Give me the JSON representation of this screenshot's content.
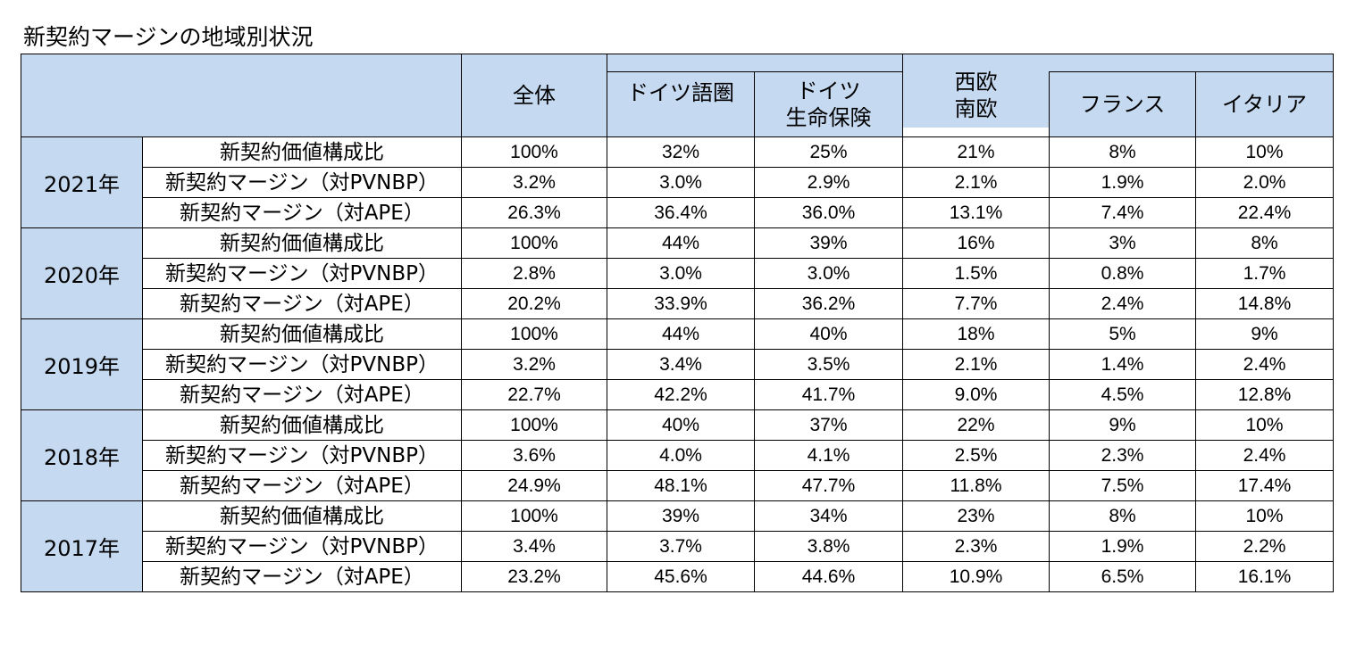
{
  "title": "新契約マージンの地域別状況",
  "headers": {
    "total": "全体",
    "dach": "ドイツ語圏",
    "germany_life_line1": "ドイツ",
    "germany_life_line2": "生命保険",
    "west_south_line1": "西欧",
    "west_south_line2": "南欧",
    "france": "フランス",
    "italy": "イタリア"
  },
  "years": [
    {
      "year": "2021年",
      "rows": [
        {
          "metric": "新契約価値構成比",
          "values": [
            "100%",
            "32%",
            "25%",
            "21%",
            "8%",
            "10%"
          ]
        },
        {
          "metric": "新契約マージン（対PVNBP）",
          "values": [
            "3.2%",
            "3.0%",
            "2.9%",
            "2.1%",
            "1.9%",
            "2.0%"
          ]
        },
        {
          "metric": "新契約マージン（対APE）",
          "values": [
            "26.3%",
            "36.4%",
            "36.0%",
            "13.1%",
            "7.4%",
            "22.4%"
          ]
        }
      ]
    },
    {
      "year": "2020年",
      "rows": [
        {
          "metric": "新契約価値構成比",
          "values": [
            "100%",
            "44%",
            "39%",
            "16%",
            "3%",
            "8%"
          ]
        },
        {
          "metric": "新契約マージン（対PVNBP）",
          "values": [
            "2.8%",
            "3.0%",
            "3.0%",
            "1.5%",
            "0.8%",
            "1.7%"
          ]
        },
        {
          "metric": "新契約マージン（対APE）",
          "values": [
            "20.2%",
            "33.9%",
            "36.2%",
            "7.7%",
            "2.4%",
            "14.8%"
          ]
        }
      ]
    },
    {
      "year": "2019年",
      "rows": [
        {
          "metric": "新契約価値構成比",
          "values": [
            "100%",
            "44%",
            "40%",
            "18%",
            "5%",
            "9%"
          ]
        },
        {
          "metric": "新契約マージン（対PVNBP）",
          "values": [
            "3.2%",
            "3.4%",
            "3.5%",
            "2.1%",
            "1.4%",
            "2.4%"
          ]
        },
        {
          "metric": "新契約マージン（対APE）",
          "values": [
            "22.7%",
            "42.2%",
            "41.7%",
            "9.0%",
            "4.5%",
            "12.8%"
          ]
        }
      ]
    },
    {
      "year": "2018年",
      "rows": [
        {
          "metric": "新契約価値構成比",
          "values": [
            "100%",
            "40%",
            "37%",
            "22%",
            "9%",
            "10%"
          ]
        },
        {
          "metric": "新契約マージン（対PVNBP）",
          "values": [
            "3.6%",
            "4.0%",
            "4.1%",
            "2.5%",
            "2.3%",
            "2.4%"
          ]
        },
        {
          "metric": "新契約マージン（対APE）",
          "values": [
            "24.9%",
            "48.1%",
            "47.7%",
            "11.8%",
            "7.5%",
            "17.4%"
          ]
        }
      ]
    },
    {
      "year": "2017年",
      "rows": [
        {
          "metric": "新契約価値構成比",
          "values": [
            "100%",
            "39%",
            "34%",
            "23%",
            "8%",
            "10%"
          ]
        },
        {
          "metric": "新契約マージン（対PVNBP）",
          "values": [
            "3.4%",
            "3.7%",
            "3.8%",
            "2.3%",
            "1.9%",
            "2.2%"
          ]
        },
        {
          "metric": "新契約マージン（対APE）",
          "values": [
            "23.2%",
            "45.6%",
            "44.6%",
            "10.9%",
            "6.5%",
            "16.1%"
          ]
        }
      ]
    }
  ],
  "colors": {
    "header_fill": "#c5d9f1",
    "border": "#000000"
  }
}
